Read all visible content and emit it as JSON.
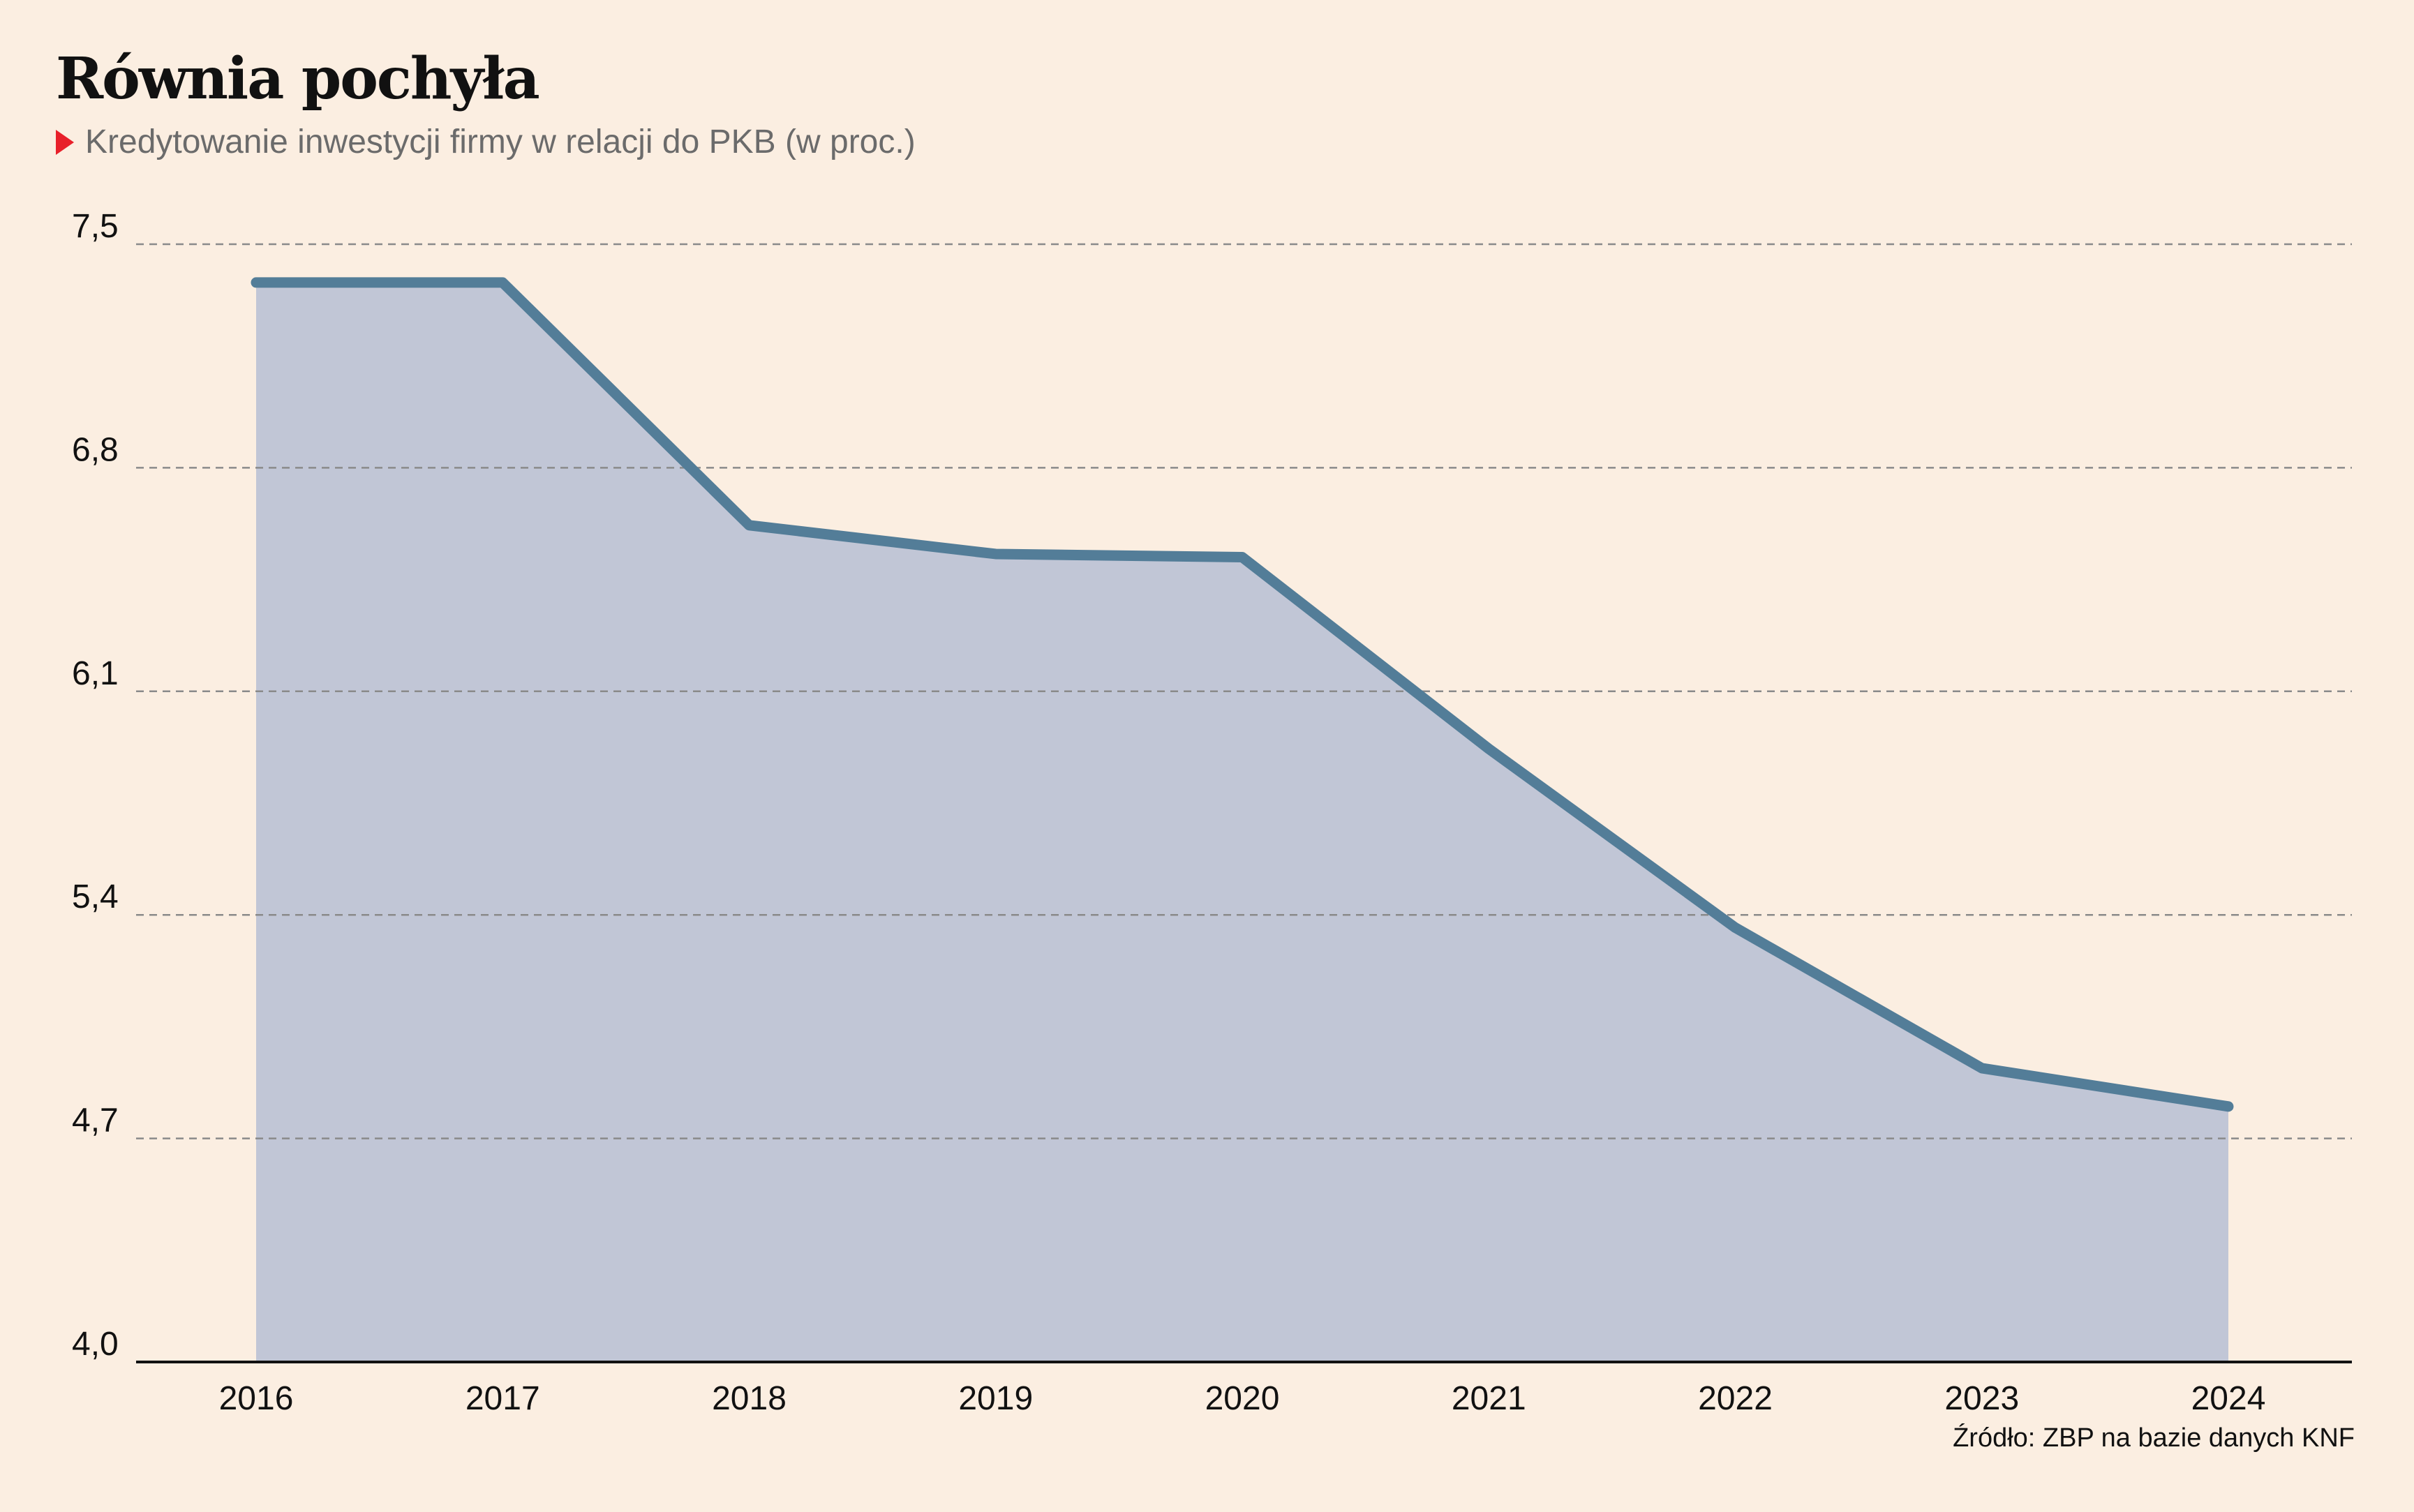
{
  "chart_data": {
    "type": "area",
    "title": "Równia pochyła",
    "subtitle": "Kredytowanie inwestycji firmy w relacji do PKB (w proc.)",
    "source": "Źródło: ZBP na bazie danych KNF",
    "x": [
      "2016",
      "2017",
      "2018",
      "2019",
      "2020",
      "2021",
      "2022",
      "2023",
      "2024"
    ],
    "series": [
      {
        "values": [
          7.38,
          7.38,
          6.62,
          6.53,
          6.52,
          5.92,
          5.36,
          4.92,
          4.8
        ]
      }
    ],
    "y_ticks": [
      "4,0",
      "4,7",
      "5,4",
      "6,1",
      "6,8",
      "7,5"
    ],
    "y_tick_values": [
      4.0,
      4.7,
      5.4,
      6.1,
      6.8,
      7.5
    ],
    "ylim": [
      4.0,
      7.5
    ],
    "grid": "horizontal dashed",
    "colors": {
      "background": "#fbeee1",
      "area_fill": "#c1c6d6",
      "line": "#537d98",
      "grid": "#8a8a8a",
      "axis": "#111111",
      "marker": "#e8202a"
    }
  }
}
